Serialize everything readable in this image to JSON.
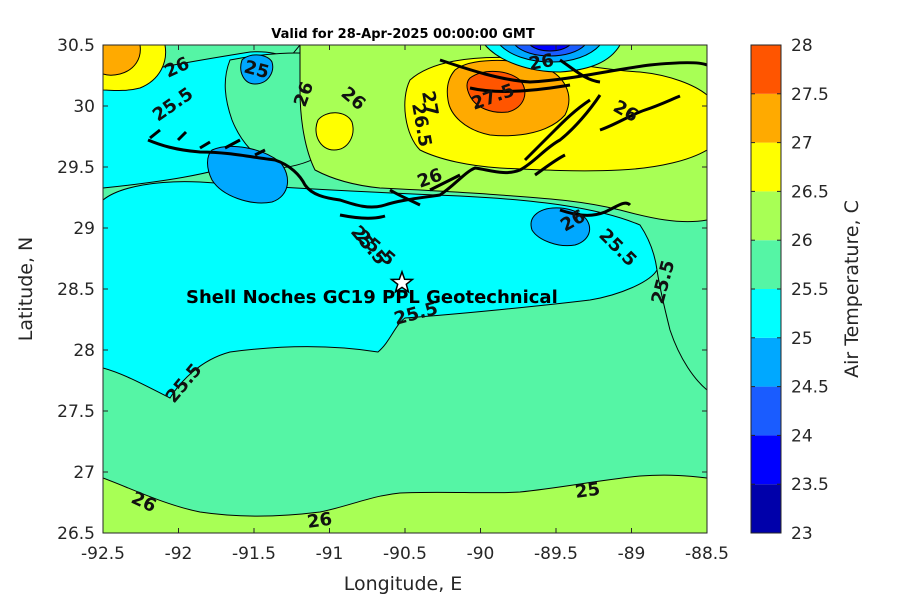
{
  "title": "Valid for 28-Apr-2025 00:00:00 GMT",
  "map": {
    "xlabel": "Longitude, E",
    "ylabel": "Latitude, N",
    "xlim": [
      -92.5,
      -88.5
    ],
    "ylim": [
      26.5,
      30.5
    ],
    "xticks": [
      "-92.5",
      "-92",
      "-91.5",
      "-91",
      "-90.5",
      "-90",
      "-89.5",
      "-89",
      "-88.5"
    ],
    "yticks": [
      "26.5",
      "27",
      "27.5",
      "28",
      "28.5",
      "29",
      "29.5",
      "30",
      "30.5"
    ],
    "site": {
      "label": "Shell Noches   GC19 PPL  Geotechnical",
      "lon": -90.52,
      "lat": 28.55,
      "marker": "star"
    },
    "contour_labels": [
      "26",
      "25.5",
      "25",
      "26",
      "25.5",
      "26",
      "26.5",
      "27",
      "27.5",
      "26",
      "26",
      "26",
      "25.5",
      "26",
      "25.5",
      "25.5",
      "25.5",
      "25.5",
      "26",
      "26",
      "25"
    ]
  },
  "colorbar": {
    "label": "Air Temperature, C",
    "ticks": [
      "23",
      "23.5",
      "24",
      "24.5",
      "25",
      "25.5",
      "26",
      "26.5",
      "27",
      "27.5",
      "28"
    ],
    "colors": [
      "#0000aa",
      "#0000ff",
      "#1a5cff",
      "#00a8ff",
      "#00ffff",
      "#55f5a5",
      "#a8ff55",
      "#ffff00",
      "#ffaa00",
      "#ff5500",
      "#ff0000"
    ]
  }
}
